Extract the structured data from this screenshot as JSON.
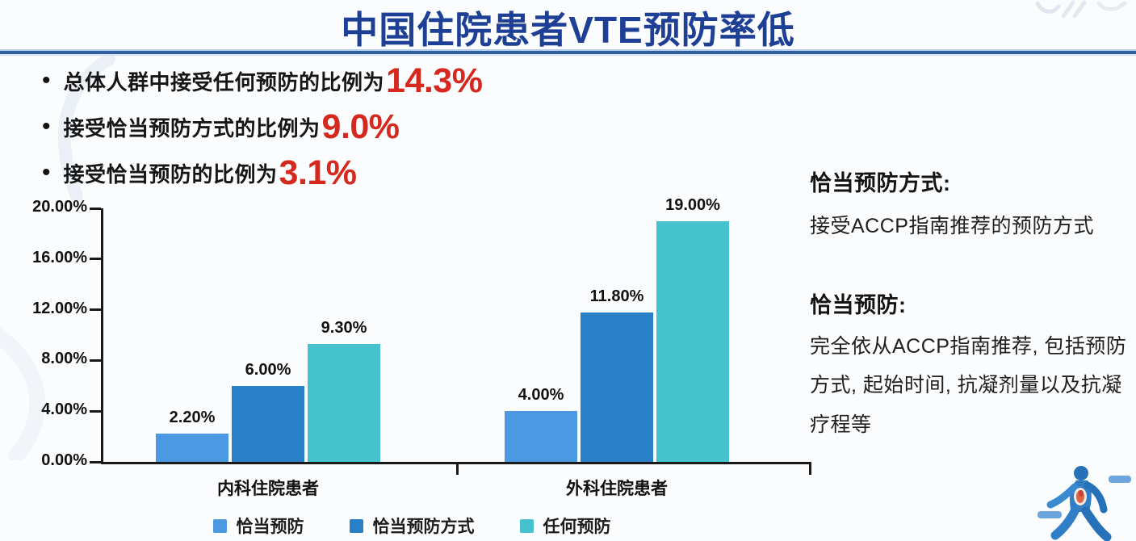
{
  "title": "中国住院患者VTE预防率低",
  "bullets": [
    {
      "text": "总体人群中接受任何预防的比例为",
      "value": "14.3%"
    },
    {
      "text": "接受恰当预防方式的比例为",
      "value": "9.0%"
    },
    {
      "text": "接受恰当预防的比例为",
      "value": "3.1%"
    }
  ],
  "chart_data": {
    "type": "bar",
    "categories": [
      "内科住院患者",
      "外科住院患者"
    ],
    "series": [
      {
        "name": "恰当预防",
        "color": "#4a99e2",
        "values": [
          2.2,
          4.0
        ],
        "labels": [
          "2.20%",
          "4.00%"
        ]
      },
      {
        "name": "恰当预防方式",
        "color": "#2a80c8",
        "values": [
          6.0,
          11.8
        ],
        "labels": [
          "6.00%",
          "11.80%"
        ]
      },
      {
        "name": "任何预防",
        "color": "#45c2cd",
        "values": [
          9.3,
          19.0
        ],
        "labels": [
          "9.30%",
          "19.00%"
        ]
      }
    ],
    "ylim": [
      0,
      20
    ],
    "yticks": [
      "0.00%",
      "4.00%",
      "8.00%",
      "12.00%",
      "16.00%",
      "20.00%"
    ],
    "legend_position": "bottom",
    "grid": false
  },
  "side_notes": [
    {
      "heading": "恰当预防方式:",
      "body": "接受ACCP指南推荐的预防方式"
    },
    {
      "heading": "恰当预防:",
      "body": "完全依从ACCP指南推荐, 包括预防方式, 起始时间, 抗凝剂量以及抗凝疗程等"
    }
  ],
  "colors": {
    "title_blue": "#1e3f96",
    "rule_blue": "#30609f",
    "highlight_red": "#d5281e",
    "axis_black": "#1a1a1a",
    "bar_light_blue": "#4a99e2",
    "bar_medium_blue": "#2a80c8",
    "bar_teal": "#45c2cd"
  }
}
